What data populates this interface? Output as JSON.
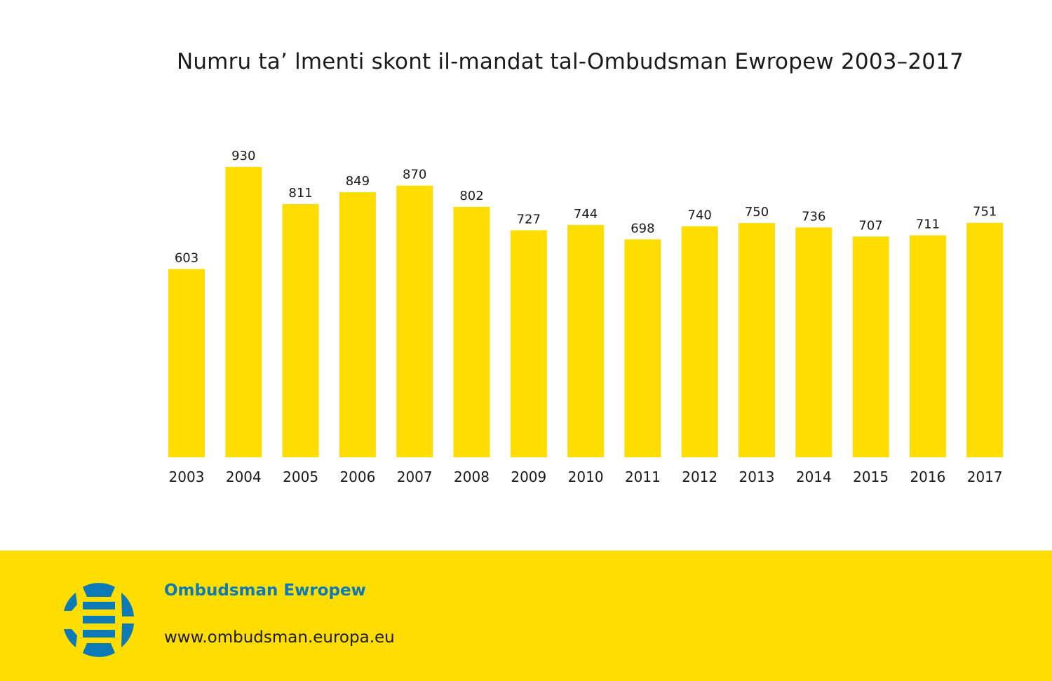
{
  "colors": {
    "bar": "#ffdd00",
    "footer_bg": "#ffdd00",
    "brand_blue": "#0b7ab6",
    "text": "#1a1a1a"
  },
  "chart_data": {
    "type": "bar",
    "title": "Numru ta’ lmenti skont il-mandat tal-Ombudsman Ewropew 2003–2017",
    "categories": [
      "2003",
      "2004",
      "2005",
      "2006",
      "2007",
      "2008",
      "2009",
      "2010",
      "2011",
      "2012",
      "2013",
      "2014",
      "2015",
      "2016",
      "2017"
    ],
    "values": [
      603,
      930,
      811,
      849,
      870,
      802,
      727,
      744,
      698,
      740,
      750,
      736,
      707,
      711,
      751
    ],
    "xlabel": "",
    "ylabel": "",
    "ylim": [
      0,
      930
    ],
    "grid": false,
    "data_labels": true
  },
  "footer": {
    "logo_icon": "ombudsman-logo-icon",
    "name": "Ombudsman Ewropew",
    "url": "www.ombudsman.europa.eu"
  }
}
